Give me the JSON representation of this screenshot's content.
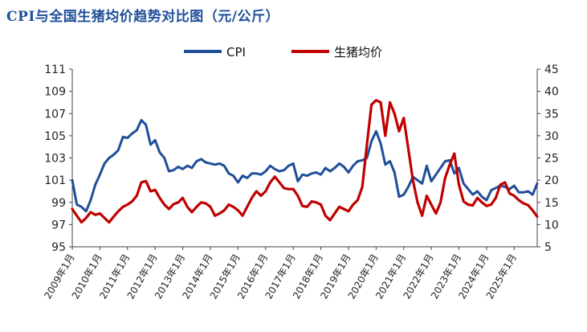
{
  "title": "CPI与全国生猪均价趋势对比图（元/公斤）",
  "legend": [
    {
      "key": "cpi",
      "label": "CPI"
    },
    {
      "key": "hog",
      "label": "生猪均价"
    }
  ],
  "colors": {
    "cpi": "#1f4e99",
    "hog": "#c00000",
    "axis": "#444444"
  },
  "chart_data": {
    "type": "line",
    "title": "CPI与全国生猪均价趋势对比图（元/公斤）",
    "x_start": "2009-01",
    "x_end": "2025-11",
    "x_tick_labels": [
      "2009年1月",
      "2010年1月",
      "2011年1月",
      "2012年1月",
      "2013年1月",
      "2014年1月",
      "2015年1月",
      "2016年1月",
      "2017年1月",
      "2018年1月",
      "2019年1月",
      "2020年1月",
      "2021年1月",
      "2022年1月",
      "2023年1月",
      "2024年1月",
      "2025年1月"
    ],
    "y_left": {
      "min": 95,
      "max": 111,
      "ticks": [
        95,
        97,
        99,
        101,
        103,
        105,
        107,
        109,
        111
      ]
    },
    "y_right": {
      "min": 5,
      "max": 45,
      "ticks": [
        5,
        10,
        15,
        20,
        25,
        30,
        35,
        40,
        45
      ]
    },
    "legend_position": "top-center",
    "grid": false,
    "series": [
      {
        "name": "CPI",
        "axis": "left",
        "points": [
          [
            "2009-01",
            101.0
          ],
          [
            "2009-03",
            98.8
          ],
          [
            "2009-05",
            98.6
          ],
          [
            "2009-07",
            98.2
          ],
          [
            "2009-09",
            99.2
          ],
          [
            "2009-11",
            100.6
          ],
          [
            "2010-01",
            101.5
          ],
          [
            "2010-03",
            102.5
          ],
          [
            "2010-05",
            103.0
          ],
          [
            "2010-07",
            103.3
          ],
          [
            "2010-09",
            103.7
          ],
          [
            "2010-11",
            104.9
          ],
          [
            "2011-01",
            104.8
          ],
          [
            "2011-03",
            105.2
          ],
          [
            "2011-05",
            105.5
          ],
          [
            "2011-07",
            106.4
          ],
          [
            "2011-09",
            106.0
          ],
          [
            "2011-11",
            104.2
          ],
          [
            "2012-01",
            104.6
          ],
          [
            "2012-03",
            103.5
          ],
          [
            "2012-05",
            103.0
          ],
          [
            "2012-07",
            101.8
          ],
          [
            "2012-09",
            101.9
          ],
          [
            "2012-11",
            102.2
          ],
          [
            "2013-01",
            102.0
          ],
          [
            "2013-03",
            102.3
          ],
          [
            "2013-05",
            102.1
          ],
          [
            "2013-07",
            102.7
          ],
          [
            "2013-09",
            102.9
          ],
          [
            "2013-11",
            102.6
          ],
          [
            "2014-01",
            102.5
          ],
          [
            "2014-03",
            102.4
          ],
          [
            "2014-05",
            102.5
          ],
          [
            "2014-07",
            102.3
          ],
          [
            "2014-09",
            101.6
          ],
          [
            "2014-11",
            101.4
          ],
          [
            "2015-01",
            100.8
          ],
          [
            "2015-03",
            101.4
          ],
          [
            "2015-05",
            101.2
          ],
          [
            "2015-07",
            101.6
          ],
          [
            "2015-09",
            101.6
          ],
          [
            "2015-11",
            101.5
          ],
          [
            "2016-01",
            101.8
          ],
          [
            "2016-03",
            102.3
          ],
          [
            "2016-05",
            102.0
          ],
          [
            "2016-07",
            101.8
          ],
          [
            "2016-09",
            101.9
          ],
          [
            "2016-11",
            102.3
          ],
          [
            "2017-01",
            102.5
          ],
          [
            "2017-03",
            100.9
          ],
          [
            "2017-05",
            101.5
          ],
          [
            "2017-07",
            101.4
          ],
          [
            "2017-09",
            101.6
          ],
          [
            "2017-11",
            101.7
          ],
          [
            "2018-01",
            101.5
          ],
          [
            "2018-03",
            102.1
          ],
          [
            "2018-05",
            101.8
          ],
          [
            "2018-07",
            102.1
          ],
          [
            "2018-09",
            102.5
          ],
          [
            "2018-11",
            102.2
          ],
          [
            "2019-01",
            101.7
          ],
          [
            "2019-03",
            102.3
          ],
          [
            "2019-05",
            102.7
          ],
          [
            "2019-07",
            102.8
          ],
          [
            "2019-09",
            103.0
          ],
          [
            "2019-11",
            104.5
          ],
          [
            "2020-01",
            105.4
          ],
          [
            "2020-03",
            104.3
          ],
          [
            "2020-05",
            102.4
          ],
          [
            "2020-07",
            102.7
          ],
          [
            "2020-09",
            101.7
          ],
          [
            "2020-11",
            99.5
          ],
          [
            "2021-01",
            99.7
          ],
          [
            "2021-03",
            100.4
          ],
          [
            "2021-05",
            101.3
          ],
          [
            "2021-07",
            101.0
          ],
          [
            "2021-09",
            100.7
          ],
          [
            "2021-11",
            102.3
          ],
          [
            "2022-01",
            100.9
          ],
          [
            "2022-03",
            101.5
          ],
          [
            "2022-05",
            102.1
          ],
          [
            "2022-07",
            102.7
          ],
          [
            "2022-09",
            102.8
          ],
          [
            "2022-11",
            101.6
          ],
          [
            "2023-01",
            102.1
          ],
          [
            "2023-03",
            100.7
          ],
          [
            "2023-05",
            100.2
          ],
          [
            "2023-07",
            99.7
          ],
          [
            "2023-09",
            100.0
          ],
          [
            "2023-11",
            99.5
          ],
          [
            "2024-01",
            99.2
          ],
          [
            "2024-03",
            100.1
          ],
          [
            "2024-05",
            100.3
          ],
          [
            "2024-07",
            100.5
          ],
          [
            "2024-09",
            100.4
          ],
          [
            "2024-11",
            100.2
          ],
          [
            "2025-01",
            100.5
          ],
          [
            "2025-03",
            99.9
          ],
          [
            "2025-05",
            99.9
          ],
          [
            "2025-07",
            100.0
          ],
          [
            "2025-09",
            99.7
          ],
          [
            "2025-11",
            100.7
          ]
        ]
      },
      {
        "name": "生猪均价",
        "axis": "right",
        "points": [
          [
            "2009-01",
            13.5
          ],
          [
            "2009-03",
            12.0
          ],
          [
            "2009-05",
            10.5
          ],
          [
            "2009-07",
            11.5
          ],
          [
            "2009-09",
            12.8
          ],
          [
            "2009-11",
            12.2
          ],
          [
            "2010-01",
            12.5
          ],
          [
            "2010-03",
            11.5
          ],
          [
            "2010-05",
            10.5
          ],
          [
            "2010-07",
            11.8
          ],
          [
            "2010-09",
            13.0
          ],
          [
            "2010-11",
            14.0
          ],
          [
            "2011-01",
            14.5
          ],
          [
            "2011-03",
            15.2
          ],
          [
            "2011-05",
            16.5
          ],
          [
            "2011-07",
            19.5
          ],
          [
            "2011-09",
            19.8
          ],
          [
            "2011-11",
            17.5
          ],
          [
            "2012-01",
            17.8
          ],
          [
            "2012-03",
            16.0
          ],
          [
            "2012-05",
            14.5
          ],
          [
            "2012-07",
            13.5
          ],
          [
            "2012-09",
            14.6
          ],
          [
            "2012-11",
            15.0
          ],
          [
            "2013-01",
            16.0
          ],
          [
            "2013-03",
            14.0
          ],
          [
            "2013-05",
            12.8
          ],
          [
            "2013-07",
            14.0
          ],
          [
            "2013-09",
            15.0
          ],
          [
            "2013-11",
            14.8
          ],
          [
            "2014-01",
            14.0
          ],
          [
            "2014-03",
            12.0
          ],
          [
            "2014-05",
            12.5
          ],
          [
            "2014-07",
            13.2
          ],
          [
            "2014-09",
            14.5
          ],
          [
            "2014-11",
            14.0
          ],
          [
            "2015-01",
            13.2
          ],
          [
            "2015-03",
            12.0
          ],
          [
            "2015-05",
            14.0
          ],
          [
            "2015-07",
            16.0
          ],
          [
            "2015-09",
            17.5
          ],
          [
            "2015-11",
            16.5
          ],
          [
            "2016-01",
            17.5
          ],
          [
            "2016-03",
            19.5
          ],
          [
            "2016-05",
            20.8
          ],
          [
            "2016-07",
            19.5
          ],
          [
            "2016-09",
            18.2
          ],
          [
            "2016-11",
            18.0
          ],
          [
            "2017-01",
            18.0
          ],
          [
            "2017-03",
            16.5
          ],
          [
            "2017-05",
            14.2
          ],
          [
            "2017-07",
            14.0
          ],
          [
            "2017-09",
            15.2
          ],
          [
            "2017-11",
            15.0
          ],
          [
            "2018-01",
            14.5
          ],
          [
            "2018-03",
            12.0
          ],
          [
            "2018-05",
            11.0
          ],
          [
            "2018-07",
            12.5
          ],
          [
            "2018-09",
            14.0
          ],
          [
            "2018-11",
            13.5
          ],
          [
            "2019-01",
            13.0
          ],
          [
            "2019-03",
            14.5
          ],
          [
            "2019-05",
            15.5
          ],
          [
            "2019-07",
            18.5
          ],
          [
            "2019-09",
            28.0
          ],
          [
            "2019-11",
            37.0
          ],
          [
            "2020-01",
            38.0
          ],
          [
            "2020-03",
            37.5
          ],
          [
            "2020-05",
            30.0
          ],
          [
            "2020-07",
            37.5
          ],
          [
            "2020-09",
            35.0
          ],
          [
            "2020-11",
            31.0
          ],
          [
            "2021-01",
            34.0
          ],
          [
            "2021-03",
            27.0
          ],
          [
            "2021-05",
            20.0
          ],
          [
            "2021-07",
            15.0
          ],
          [
            "2021-09",
            12.0
          ],
          [
            "2021-11",
            16.5
          ],
          [
            "2022-01",
            14.5
          ],
          [
            "2022-03",
            12.5
          ],
          [
            "2022-05",
            15.0
          ],
          [
            "2022-07",
            20.5
          ],
          [
            "2022-09",
            23.5
          ],
          [
            "2022-11",
            26.0
          ],
          [
            "2023-01",
            19.0
          ],
          [
            "2023-03",
            15.2
          ],
          [
            "2023-05",
            14.5
          ],
          [
            "2023-07",
            14.3
          ],
          [
            "2023-09",
            16.0
          ],
          [
            "2023-11",
            15.0
          ],
          [
            "2024-01",
            14.2
          ],
          [
            "2024-03",
            14.5
          ],
          [
            "2024-05",
            16.0
          ],
          [
            "2024-07",
            19.0
          ],
          [
            "2024-09",
            19.5
          ],
          [
            "2024-11",
            17.0
          ],
          [
            "2025-01",
            16.5
          ],
          [
            "2025-03",
            15.5
          ],
          [
            "2025-05",
            14.8
          ],
          [
            "2025-07",
            14.4
          ],
          [
            "2025-09",
            13.2
          ],
          [
            "2025-11",
            11.8
          ]
        ]
      }
    ]
  }
}
